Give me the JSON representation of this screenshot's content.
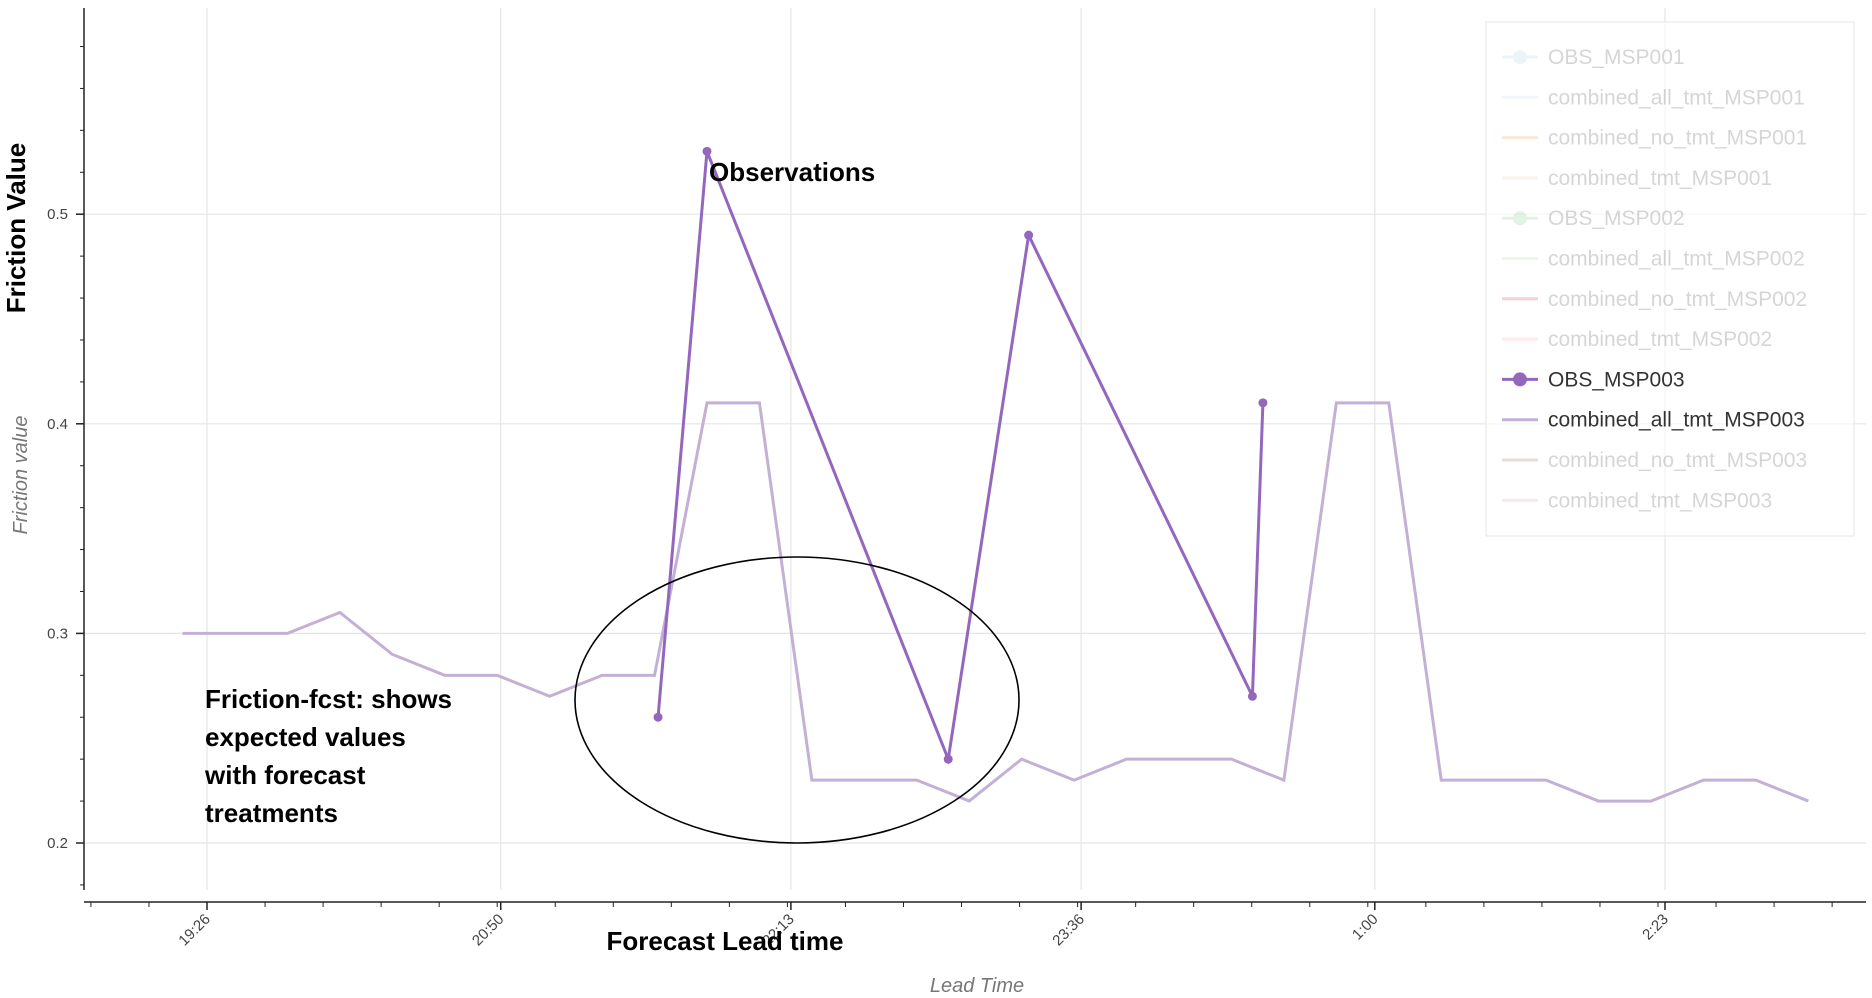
{
  "chart_data": {
    "type": "line",
    "title": "",
    "xlabel": "Lead Time",
    "ylabel": "Friction value",
    "xlabel_overlay": "Forecast Lead time",
    "ylabel_overlay": "Friction Value",
    "ylim": [
      0.16,
      0.6
    ],
    "yticks": [
      0.2,
      0.3,
      0.4,
      0.5
    ],
    "ytick_labels": [
      "0.2",
      "0.3",
      "0.4",
      "0.5"
    ],
    "xlim": [
      "19:04",
      "3:43"
    ],
    "xticks": [
      "19:26",
      "20:50",
      "22:13",
      "23:36",
      "1:00",
      "2:23"
    ],
    "grid": true,
    "legend_position": "top-right",
    "legend": [
      {
        "label": "OBS_MSP001",
        "color": "#9ecae1",
        "marker": true,
        "alpha": 0.2
      },
      {
        "label": "combined_all_tmt_MSP001",
        "color": "#c6dbef",
        "marker": false,
        "alpha": 0.2
      },
      {
        "label": "combined_no_tmt_MSP001",
        "color": "#fd8d3c",
        "marker": false,
        "alpha": 0.2
      },
      {
        "label": "combined_tmt_MSP001",
        "color": "#fdbe85",
        "marker": false,
        "alpha": 0.2
      },
      {
        "label": "OBS_MSP002",
        "color": "#74c476",
        "marker": true,
        "alpha": 0.2
      },
      {
        "label": "combined_all_tmt_MSP002",
        "color": "#a1d99b",
        "marker": false,
        "alpha": 0.2
      },
      {
        "label": "combined_no_tmt_MSP002",
        "color": "#d62728",
        "marker": false,
        "alpha": 0.2
      },
      {
        "label": "combined_tmt_MSP002",
        "color": "#ff9896",
        "marker": false,
        "alpha": 0.2
      },
      {
        "label": "OBS_MSP003",
        "color": "#9467bd",
        "marker": true,
        "alpha": 1.0
      },
      {
        "label": "combined_all_tmt_MSP003",
        "color": "#c5b0d5",
        "marker": false,
        "alpha": 1.0
      },
      {
        "label": "combined_no_tmt_MSP003",
        "color": "#8c564b",
        "marker": false,
        "alpha": 0.2
      },
      {
        "label": "combined_tmt_MSP003",
        "color": "#c49c94",
        "marker": false,
        "alpha": 0.2
      }
    ],
    "series": [
      {
        "name": "combined_all_tmt_MSP003",
        "color": "#c5b0d5",
        "points": [
          [
            "19:19",
            0.3
          ],
          [
            "19:34",
            0.3
          ],
          [
            "19:49",
            0.3
          ],
          [
            "20:04",
            0.31
          ],
          [
            "20:19",
            0.29
          ],
          [
            "20:34",
            0.28
          ],
          [
            "20:49",
            0.28
          ],
          [
            "21:04",
            0.27
          ],
          [
            "21:19",
            0.28
          ],
          [
            "21:34",
            0.28
          ],
          [
            "21:49",
            0.41
          ],
          [
            "22:04",
            0.41
          ],
          [
            "22:19",
            0.23
          ],
          [
            "22:34",
            0.23
          ],
          [
            "22:49",
            0.23
          ],
          [
            "23:04",
            0.22
          ],
          [
            "23:19",
            0.24
          ],
          [
            "23:34",
            0.23
          ],
          [
            "23:49",
            0.24
          ],
          [
            "0:04",
            0.24
          ],
          [
            "0:19",
            0.24
          ],
          [
            "0:34",
            0.23
          ],
          [
            "0:49",
            0.41
          ],
          [
            "1:04",
            0.41
          ],
          [
            "1:19",
            0.23
          ],
          [
            "1:34",
            0.23
          ],
          [
            "1:49",
            0.23
          ],
          [
            "2:04",
            0.22
          ],
          [
            "2:19",
            0.22
          ],
          [
            "2:34",
            0.23
          ],
          [
            "2:49",
            0.23
          ],
          [
            "3:04",
            0.22
          ]
        ]
      },
      {
        "name": "OBS_MSP003",
        "color": "#9467bd",
        "markers": true,
        "points": [
          [
            "21:35",
            0.26
          ],
          [
            "21:49",
            0.53
          ],
          [
            "22:58",
            0.24
          ],
          [
            "23:21",
            0.49
          ],
          [
            "0:25",
            0.27
          ],
          [
            "0:28",
            0.41
          ]
        ]
      }
    ],
    "annotations": [
      {
        "text": "Observations"
      },
      {
        "lines": [
          "Friction-fcst: shows",
          "expected values",
          "with forecast",
          "treatments"
        ]
      }
    ]
  }
}
